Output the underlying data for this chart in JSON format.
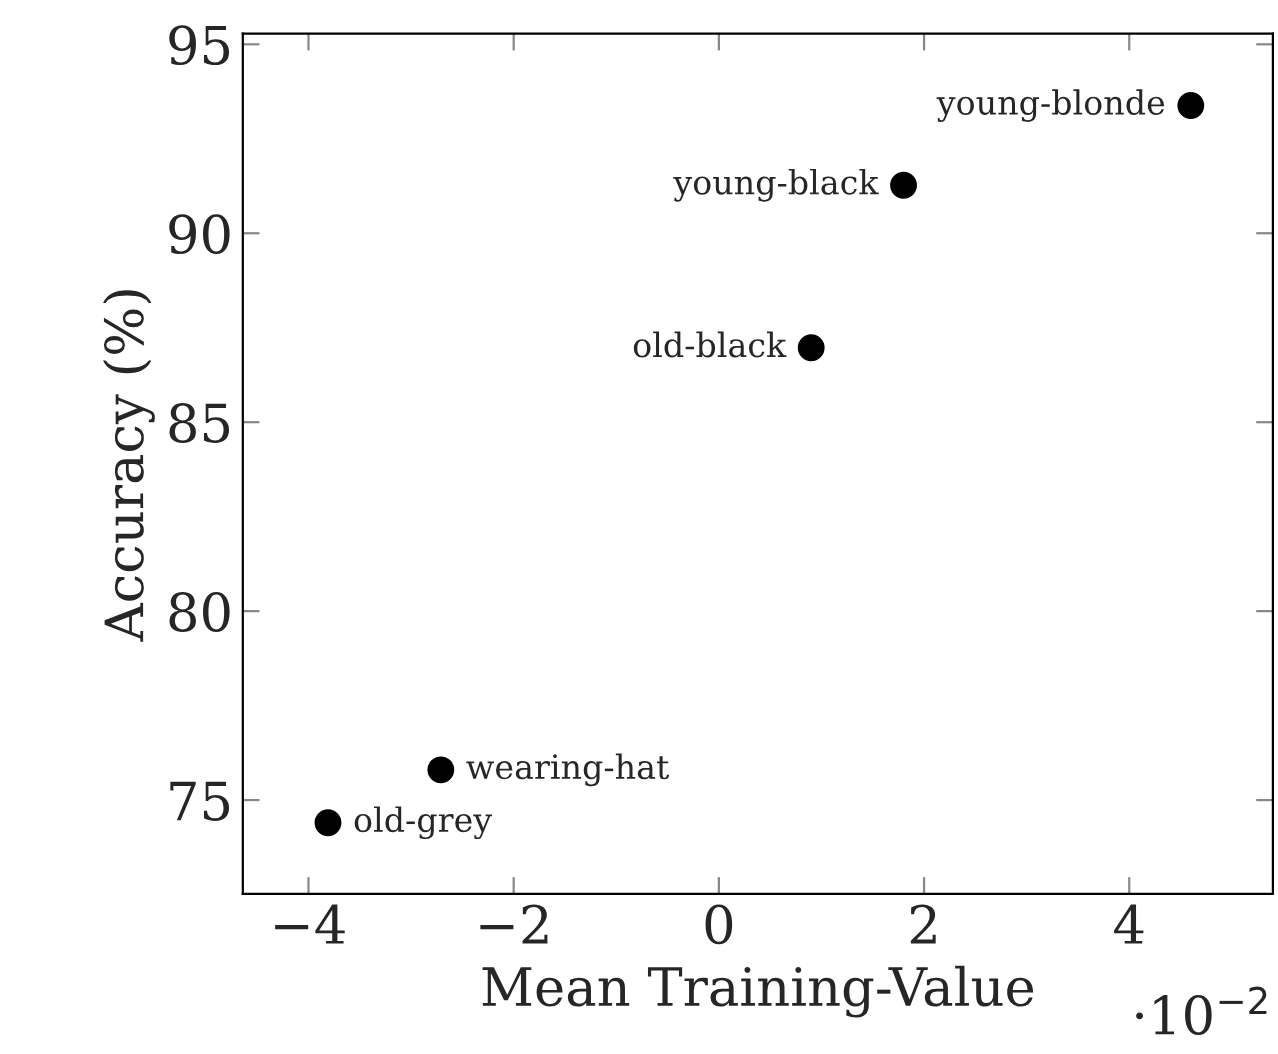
{
  "chart_data": {
    "type": "scatter",
    "xlabel": "Mean Training-Value",
    "ylabel": "Accuracy (%)",
    "x": [
      4.6,
      1.8,
      0.9,
      -2.71,
      -3.81
    ],
    "series": [
      {
        "color": "#000000",
        "values": [
          93.38,
          91.27,
          86.97,
          75.8,
          74.4
        ]
      }
    ],
    "marker": "circle",
    "grid": false,
    "xlim": [
      -4.64,
      5.4
    ],
    "ylim": [
      72.52,
      95.28
    ],
    "xticks": [
      {
        "value": -4,
        "label": "−4"
      },
      {
        "value": -2,
        "label": "−2"
      },
      0,
      2,
      4
    ],
    "yticks": [
      75,
      80,
      85,
      90,
      95
    ],
    "annotations": [
      {
        "text": "young-blonde",
        "x": 4.6,
        "y": 93.38
      },
      {
        "text": "young-black",
        "x": 1.8,
        "y": 91.27
      },
      {
        "text": "old-black",
        "x": 0.9,
        "y": 86.97
      },
      {
        "text": "wearing-hat",
        "x": -2.71,
        "y": 75.8
      },
      {
        "text": "old-grey",
        "x": -3.81,
        "y": 74.4
      },
      "·10$^{−2}$"
    ]
  }
}
